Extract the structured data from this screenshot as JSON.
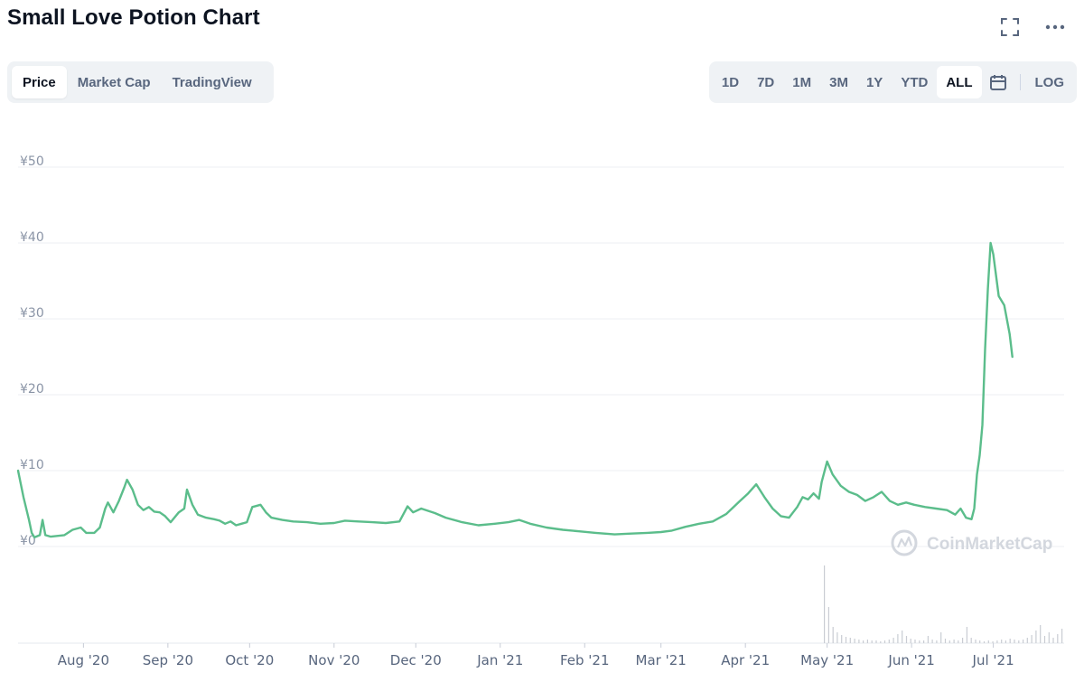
{
  "page": {
    "title": "Small Love Potion Chart"
  },
  "tabs": [
    {
      "label": "Price",
      "active": true
    },
    {
      "label": "Market Cap",
      "active": false
    },
    {
      "label": "TradingView",
      "active": false
    }
  ],
  "ranges": [
    {
      "label": "1D",
      "active": false
    },
    {
      "label": "7D",
      "active": false
    },
    {
      "label": "1M",
      "active": false
    },
    {
      "label": "3M",
      "active": false
    },
    {
      "label": "1Y",
      "active": false
    },
    {
      "label": "YTD",
      "active": false
    },
    {
      "label": "ALL",
      "active": true
    }
  ],
  "log_label": "LOG",
  "icons": {
    "fullscreen": "fullscreen-icon",
    "more": "more-icon",
    "calendar": "calendar-icon"
  },
  "watermark": "CoinMarketCap",
  "colors": {
    "line": "#5bbd8b",
    "grid": "#eceff3",
    "volume": "#c9ccd3"
  },
  "chart_data": {
    "type": "line",
    "title": "",
    "ylim": [
      0,
      50
    ],
    "y_ticks": [
      {
        "value": 0,
        "label": "¥0"
      },
      {
        "value": 10,
        "label": "¥10"
      },
      {
        "value": 20,
        "label": "¥20"
      },
      {
        "value": 30,
        "label": "¥30"
      },
      {
        "value": 40,
        "label": "¥40"
      },
      {
        "value": 50,
        "label": "¥50"
      }
    ],
    "x_ticks": [
      {
        "date": "2020-08-01",
        "label": "Aug '20"
      },
      {
        "date": "2020-09-01",
        "label": "Sep '20"
      },
      {
        "date": "2020-10-01",
        "label": "Oct '20"
      },
      {
        "date": "2020-11-01",
        "label": "Nov '20"
      },
      {
        "date": "2020-12-01",
        "label": "Dec '20"
      },
      {
        "date": "2021-01-01",
        "label": "Jan '21"
      },
      {
        "date": "2021-02-01",
        "label": "Feb '21"
      },
      {
        "date": "2021-03-01",
        "label": "Mar '21"
      },
      {
        "date": "2021-04-01",
        "label": "Apr '21"
      },
      {
        "date": "2021-05-01",
        "label": "May '21"
      },
      {
        "date": "2021-06-01",
        "label": "Jun '21"
      },
      {
        "date": "2021-07-01",
        "label": "Jul '21"
      }
    ],
    "xlim": [
      "2020-07-08",
      "2021-07-27"
    ],
    "grid": true,
    "series": [
      {
        "points": [
          [
            "2020-07-08",
            10.0
          ],
          [
            "2020-07-10",
            6.5
          ],
          [
            "2020-07-12",
            3.5
          ],
          [
            "2020-07-13",
            1.8
          ],
          [
            "2020-07-14",
            1.2
          ],
          [
            "2020-07-16",
            1.5
          ],
          [
            "2020-07-17",
            3.5
          ],
          [
            "2020-07-18",
            1.5
          ],
          [
            "2020-07-20",
            1.3
          ],
          [
            "2020-07-25",
            1.5
          ],
          [
            "2020-07-28",
            2.2
          ],
          [
            "2020-07-31",
            2.5
          ],
          [
            "2020-08-02",
            1.8
          ],
          [
            "2020-08-05",
            1.8
          ],
          [
            "2020-08-07",
            2.5
          ],
          [
            "2020-08-09",
            5.0
          ],
          [
            "2020-08-10",
            5.8
          ],
          [
            "2020-08-12",
            4.5
          ],
          [
            "2020-08-14",
            6.0
          ],
          [
            "2020-08-16",
            7.8
          ],
          [
            "2020-08-17",
            8.8
          ],
          [
            "2020-08-19",
            7.5
          ],
          [
            "2020-08-21",
            5.5
          ],
          [
            "2020-08-23",
            4.8
          ],
          [
            "2020-08-25",
            5.2
          ],
          [
            "2020-08-27",
            4.6
          ],
          [
            "2020-08-29",
            4.5
          ],
          [
            "2020-08-31",
            4.0
          ],
          [
            "2020-09-02",
            3.2
          ],
          [
            "2020-09-05",
            4.5
          ],
          [
            "2020-09-07",
            5.0
          ],
          [
            "2020-09-08",
            7.5
          ],
          [
            "2020-09-10",
            5.5
          ],
          [
            "2020-09-12",
            4.2
          ],
          [
            "2020-09-15",
            3.8
          ],
          [
            "2020-09-18",
            3.6
          ],
          [
            "2020-09-20",
            3.4
          ],
          [
            "2020-09-22",
            3.0
          ],
          [
            "2020-09-24",
            3.3
          ],
          [
            "2020-09-26",
            2.8
          ],
          [
            "2020-09-28",
            3.0
          ],
          [
            "2020-09-30",
            3.2
          ],
          [
            "2020-10-02",
            5.2
          ],
          [
            "2020-10-05",
            5.5
          ],
          [
            "2020-10-07",
            4.5
          ],
          [
            "2020-10-09",
            3.8
          ],
          [
            "2020-10-13",
            3.5
          ],
          [
            "2020-10-17",
            3.3
          ],
          [
            "2020-10-22",
            3.2
          ],
          [
            "2020-10-27",
            3.0
          ],
          [
            "2020-11-01",
            3.1
          ],
          [
            "2020-11-05",
            3.4
          ],
          [
            "2020-11-10",
            3.3
          ],
          [
            "2020-11-15",
            3.2
          ],
          [
            "2020-11-20",
            3.1
          ],
          [
            "2020-11-25",
            3.3
          ],
          [
            "2020-11-28",
            5.3
          ],
          [
            "2020-11-30",
            4.5
          ],
          [
            "2020-12-03",
            5.0
          ],
          [
            "2020-12-08",
            4.4
          ],
          [
            "2020-12-12",
            3.8
          ],
          [
            "2020-12-18",
            3.2
          ],
          [
            "2020-12-24",
            2.8
          ],
          [
            "2020-12-30",
            3.0
          ],
          [
            "2021-01-04",
            3.2
          ],
          [
            "2021-01-08",
            3.5
          ],
          [
            "2021-01-12",
            3.0
          ],
          [
            "2021-01-18",
            2.5
          ],
          [
            "2021-01-24",
            2.2
          ],
          [
            "2021-01-30",
            2.0
          ],
          [
            "2021-02-05",
            1.8
          ],
          [
            "2021-02-12",
            1.6
          ],
          [
            "2021-02-18",
            1.7
          ],
          [
            "2021-02-24",
            1.8
          ],
          [
            "2021-03-01",
            1.9
          ],
          [
            "2021-03-05",
            2.1
          ],
          [
            "2021-03-10",
            2.6
          ],
          [
            "2021-03-15",
            3.0
          ],
          [
            "2021-03-20",
            3.3
          ],
          [
            "2021-03-25",
            4.3
          ],
          [
            "2021-03-30",
            6.0
          ],
          [
            "2021-04-02",
            7.0
          ],
          [
            "2021-04-05",
            8.2
          ],
          [
            "2021-04-08",
            6.5
          ],
          [
            "2021-04-11",
            5.0
          ],
          [
            "2021-04-14",
            4.0
          ],
          [
            "2021-04-17",
            3.8
          ],
          [
            "2021-04-20",
            5.2
          ],
          [
            "2021-04-22",
            6.5
          ],
          [
            "2021-04-24",
            6.2
          ],
          [
            "2021-04-26",
            7.0
          ],
          [
            "2021-04-28",
            6.3
          ],
          [
            "2021-04-29",
            8.5
          ],
          [
            "2021-05-01",
            11.2
          ],
          [
            "2021-05-03",
            9.5
          ],
          [
            "2021-05-06",
            8.0
          ],
          [
            "2021-05-09",
            7.2
          ],
          [
            "2021-05-12",
            6.8
          ],
          [
            "2021-05-15",
            6.0
          ],
          [
            "2021-05-18",
            6.5
          ],
          [
            "2021-05-21",
            7.2
          ],
          [
            "2021-05-24",
            6.0
          ],
          [
            "2021-05-27",
            5.5
          ],
          [
            "2021-05-30",
            5.8
          ],
          [
            "2021-06-02",
            5.5
          ],
          [
            "2021-06-06",
            5.2
          ],
          [
            "2021-06-10",
            5.0
          ],
          [
            "2021-06-14",
            4.8
          ],
          [
            "2021-06-17",
            4.2
          ],
          [
            "2021-06-19",
            5.0
          ],
          [
            "2021-06-21",
            3.8
          ],
          [
            "2021-06-23",
            3.6
          ],
          [
            "2021-06-24",
            5.0
          ],
          [
            "2021-06-25",
            9.5
          ],
          [
            "2021-06-26",
            12.0
          ],
          [
            "2021-06-27",
            16.0
          ],
          [
            "2021-06-28",
            26.0
          ],
          [
            "2021-06-29",
            34.0
          ],
          [
            "2021-06-30",
            40.0
          ],
          [
            "2021-07-01",
            38.5
          ],
          [
            "2021-07-03",
            33.0
          ],
          [
            "2021-07-05",
            31.8
          ],
          [
            "2021-07-07",
            28.0
          ],
          [
            "2021-07-08",
            25.0
          ]
        ]
      }
    ]
  }
}
